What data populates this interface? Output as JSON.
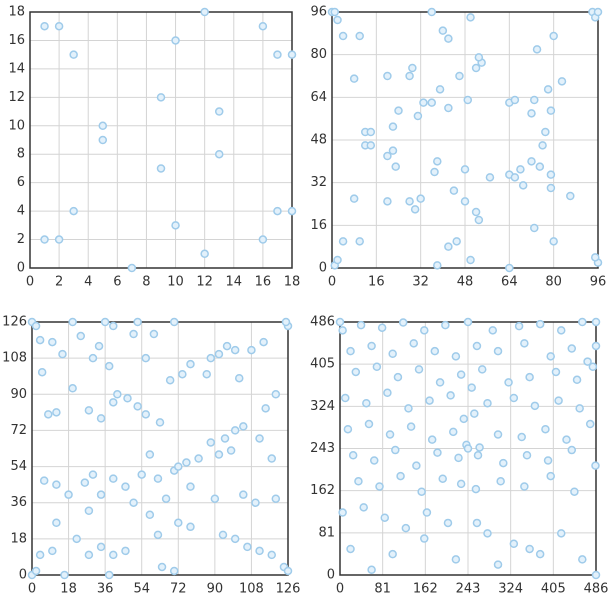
{
  "chart_data": [
    {
      "type": "scatter",
      "color": "#9fcbea",
      "grid": true,
      "xlim": [
        0,
        18
      ],
      "ylim": [
        0,
        18
      ],
      "xticks": [
        0,
        2,
        4,
        6,
        8,
        10,
        12,
        14,
        16,
        18
      ],
      "yticks": [
        0,
        2,
        4,
        6,
        8,
        10,
        12,
        14,
        16,
        18
      ],
      "x": [
        1,
        2,
        3,
        12,
        10,
        16,
        17,
        18,
        9,
        13,
        5,
        5,
        13,
        9,
        3,
        17,
        18,
        10,
        1,
        2,
        16,
        12,
        7
      ],
      "values": [
        17,
        17,
        15,
        18,
        16,
        17,
        15,
        15,
        12,
        11,
        10,
        9,
        8,
        7,
        4,
        4,
        4,
        3,
        2,
        2,
        2,
        1,
        0
      ]
    },
    {
      "type": "scatter",
      "color": "#9fcbea",
      "grid": true,
      "xlim": [
        0,
        96
      ],
      "ylim": [
        0,
        96
      ],
      "xticks": [
        0,
        16,
        32,
        48,
        64,
        80,
        96
      ],
      "yticks": [
        0,
        16,
        32,
        48,
        64,
        80,
        96
      ],
      "x": [
        0,
        1,
        2,
        4,
        10,
        8,
        20,
        28,
        29,
        36,
        40,
        42,
        50,
        54,
        53,
        52,
        46,
        39,
        33,
        31,
        24,
        22,
        12,
        14,
        12,
        14,
        20,
        22,
        23,
        36,
        42,
        49,
        64,
        66,
        74,
        80,
        83,
        94,
        95,
        96,
        78,
        73,
        72,
        79,
        77,
        76,
        72,
        75,
        68,
        64,
        79,
        79,
        86,
        69,
        66,
        57,
        48,
        44,
        38,
        37,
        32,
        28,
        30,
        48,
        52,
        53,
        20,
        8,
        4,
        10,
        45,
        42,
        73,
        80,
        38,
        50,
        64,
        1,
        2,
        96,
        95
      ],
      "values": [
        96,
        96,
        93,
        87,
        87,
        71,
        72,
        72,
        75,
        96,
        89,
        86,
        94,
        77,
        79,
        75,
        72,
        67,
        62,
        57,
        59,
        53,
        51,
        51,
        46,
        46,
        42,
        44,
        38,
        62,
        60,
        63,
        62,
        63,
        82,
        87,
        70,
        96,
        94,
        96,
        67,
        63,
        58,
        59,
        51,
        46,
        40,
        38,
        37,
        35,
        35,
        30,
        27,
        31,
        34,
        34,
        37,
        29,
        40,
        36,
        26,
        25,
        22,
        25,
        21,
        18,
        25,
        26,
        10,
        10,
        10,
        8,
        15,
        10,
        1,
        3,
        0,
        1,
        3,
        2,
        4
      ]
    },
    {
      "type": "scatter",
      "color": "#9fcbea",
      "grid": true,
      "xlim": [
        0,
        126
      ],
      "ylim": [
        0,
        126
      ],
      "xticks": [
        0,
        18,
        36,
        54,
        72,
        90,
        108,
        126
      ],
      "yticks": [
        0,
        18,
        36,
        54,
        72,
        90,
        108,
        126
      ],
      "x": [
        0,
        2,
        126,
        125,
        20,
        36,
        52,
        70,
        4,
        10,
        24,
        33,
        40,
        50,
        5,
        15,
        30,
        38,
        56,
        60,
        68,
        74,
        78,
        86,
        88,
        92,
        96,
        100,
        108,
        114,
        120,
        115,
        102,
        20,
        28,
        34,
        42,
        47,
        52,
        56,
        40,
        8,
        12,
        63,
        88,
        95,
        100,
        104,
        112,
        118,
        82,
        92,
        98,
        76,
        70,
        58,
        54,
        62,
        72,
        78,
        26,
        30,
        40,
        46,
        50,
        6,
        12,
        18,
        34,
        28,
        66,
        90,
        104,
        110,
        120,
        58,
        72,
        78,
        94,
        100,
        106,
        112,
        118,
        22,
        12,
        34,
        40,
        46,
        62,
        64,
        70,
        4,
        10,
        28,
        16,
        38,
        0,
        2,
        124,
        126
      ],
      "values": [
        126,
        124,
        124,
        126,
        126,
        126,
        126,
        126,
        117,
        116,
        119,
        114,
        124,
        120,
        101,
        110,
        108,
        104,
        108,
        120,
        97,
        100,
        105,
        100,
        108,
        110,
        114,
        112,
        112,
        116,
        90,
        83,
        98,
        93,
        82,
        78,
        90,
        88,
        84,
        80,
        86,
        80,
        81,
        76,
        66,
        68,
        72,
        74,
        68,
        58,
        58,
        60,
        62,
        56,
        52,
        60,
        50,
        48,
        54,
        44,
        46,
        50,
        48,
        44,
        36,
        47,
        45,
        40,
        40,
        32,
        38,
        38,
        40,
        36,
        38,
        30,
        26,
        24,
        20,
        18,
        14,
        12,
        10,
        18,
        26,
        14,
        10,
        12,
        20,
        4,
        2,
        10,
        12,
        10,
        0,
        0,
        0,
        2,
        4,
        2
      ]
    },
    {
      "type": "scatter",
      "color": "#9fcbea",
      "grid": true,
      "xlim": [
        0,
        486
      ],
      "ylim": [
        0,
        486
      ],
      "xticks": [
        0,
        81,
        162,
        243,
        324,
        405,
        486
      ],
      "yticks": [
        0,
        81,
        162,
        243,
        324,
        405,
        486
      ],
      "x": [
        0,
        5,
        40,
        80,
        120,
        160,
        200,
        243,
        290,
        340,
        380,
        420,
        460,
        486,
        486,
        20,
        60,
        100,
        140,
        180,
        220,
        260,
        300,
        350,
        400,
        440,
        470,
        30,
        70,
        110,
        150,
        190,
        230,
        250,
        270,
        320,
        360,
        410,
        450,
        480,
        10,
        50,
        90,
        130,
        170,
        210,
        235,
        255,
        280,
        330,
        370,
        415,
        455,
        15,
        55,
        95,
        135,
        175,
        215,
        240,
        265,
        300,
        345,
        390,
        430,
        475,
        25,
        65,
        105,
        145,
        185,
        225,
        243,
        262,
        310,
        355,
        395,
        440,
        485,
        35,
        75,
        115,
        155,
        195,
        230,
        258,
        305,
        350,
        400,
        445,
        5,
        45,
        85,
        125,
        165,
        205,
        280,
        330,
        380,
        486,
        20,
        100,
        160,
        220,
        300,
        360,
        420,
        460,
        60,
        260
      ],
      "values": [
        486,
        470,
        480,
        475,
        485,
        470,
        480,
        486,
        470,
        478,
        482,
        470,
        486,
        486,
        440,
        430,
        440,
        425,
        445,
        430,
        420,
        440,
        430,
        445,
        420,
        435,
        410,
        390,
        400,
        380,
        395,
        370,
        385,
        360,
        395,
        370,
        380,
        390,
        375,
        400,
        340,
        330,
        350,
        320,
        335,
        345,
        300,
        310,
        330,
        340,
        325,
        335,
        320,
        280,
        290,
        270,
        285,
        260,
        275,
        250,
        245,
        270,
        265,
        280,
        260,
        290,
        230,
        220,
        240,
        210,
        235,
        225,
        243,
        230,
        215,
        230,
        220,
        240,
        210,
        180,
        170,
        190,
        160,
        185,
        175,
        165,
        180,
        170,
        190,
        160,
        120,
        130,
        110,
        90,
        120,
        100,
        80,
        60,
        40,
        0,
        50,
        40,
        70,
        30,
        20,
        50,
        80,
        30,
        10,
        100
      ]
    }
  ]
}
